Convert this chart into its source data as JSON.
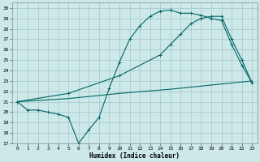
{
  "xlabel": "Humidex (Indice chaleur)",
  "bg_color": "#cce8e8",
  "line_color": "#006666",
  "grid_color": "#aacccc",
  "ylim": [
    17,
    30.5
  ],
  "xlim": [
    -0.5,
    23.5
  ],
  "yticks": [
    17,
    18,
    19,
    20,
    21,
    22,
    23,
    24,
    25,
    26,
    27,
    28,
    29,
    30
  ],
  "xticks": [
    0,
    1,
    2,
    3,
    4,
    5,
    6,
    7,
    8,
    9,
    10,
    11,
    12,
    13,
    14,
    15,
    16,
    17,
    18,
    19,
    20,
    21,
    22,
    23
  ],
  "line1_x": [
    0,
    1,
    2,
    3,
    4,
    5,
    6,
    7,
    8,
    9,
    10,
    11,
    12,
    13,
    14,
    15,
    16,
    17,
    18,
    19,
    20,
    21,
    22,
    23
  ],
  "line1_y": [
    21.0,
    20.2,
    20.2,
    20.0,
    19.8,
    19.5,
    17.0,
    18.3,
    19.5,
    22.3,
    24.8,
    27.0,
    28.3,
    29.2,
    29.7,
    29.8,
    29.5,
    29.5,
    29.3,
    29.0,
    28.8,
    26.5,
    24.5,
    22.8
  ],
  "line2_x": [
    0,
    5,
    10,
    14,
    15,
    16,
    17,
    18,
    19,
    20,
    21,
    22,
    23
  ],
  "line2_y": [
    21.0,
    21.8,
    23.5,
    25.5,
    26.5,
    27.5,
    28.5,
    29.0,
    29.2,
    29.2,
    27.0,
    25.0,
    22.8
  ],
  "line3_x": [
    0,
    5,
    10,
    15,
    20,
    23
  ],
  "line3_y": [
    21.0,
    21.3,
    21.8,
    22.2,
    22.7,
    23.0
  ]
}
